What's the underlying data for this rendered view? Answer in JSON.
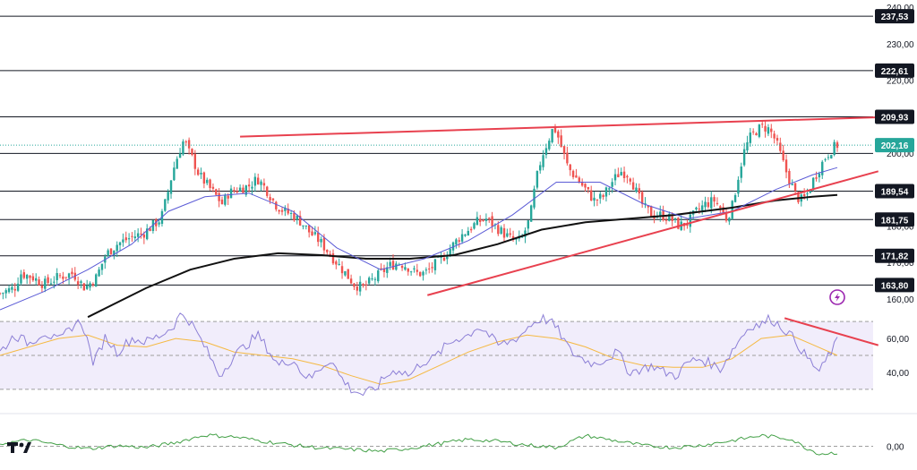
{
  "chart_data": {
    "type": "candlestick",
    "price_panel": {
      "y_ticks": [
        "240,00",
        "230,00",
        "220,00",
        "210,00",
        "200,00",
        "190,00",
        "180,00",
        "170,00",
        "160,00"
      ],
      "y_tick_values": [
        240,
        230,
        220,
        210,
        200,
        190,
        180,
        170,
        160
      ],
      "ylim": [
        157.5,
        241
      ],
      "horizontal_levels": [
        {
          "value": 237.53,
          "label": "237,53"
        },
        {
          "value": 222.61,
          "label": "222,61"
        },
        {
          "value": 209.93,
          "label": "209,93"
        },
        {
          "value": 199.9,
          "label": ""
        },
        {
          "value": 189.54,
          "label": "189,54"
        },
        {
          "value": 181.75,
          "label": "181,75"
        },
        {
          "value": 171.82,
          "label": "171,82"
        },
        {
          "value": 163.8,
          "label": "163,80"
        }
      ],
      "current_price": {
        "value": 202.16,
        "label": "202,16"
      },
      "bar_count": 280,
      "candles_approx_close_path": [
        [
          0,
          161.5
        ],
        [
          10,
          163
        ],
        [
          14,
          167
        ],
        [
          22,
          166
        ],
        [
          30,
          164
        ],
        [
          40,
          166
        ],
        [
          50,
          167
        ],
        [
          58,
          163
        ],
        [
          66,
          166
        ],
        [
          72,
          172
        ],
        [
          80,
          175
        ],
        [
          90,
          177
        ],
        [
          98,
          178
        ],
        [
          104,
          180
        ],
        [
          110,
          182
        ],
        [
          114,
          188
        ],
        [
          118,
          195
        ],
        [
          122,
          200
        ],
        [
          126,
          204
        ],
        [
          128,
          201
        ],
        [
          132,
          198
        ],
        [
          136,
          194
        ],
        [
          142,
          191
        ],
        [
          148,
          188
        ],
        [
          152,
          186
        ],
        [
          156,
          189
        ],
        [
          162,
          190
        ],
        [
          170,
          191
        ],
        [
          176,
          193
        ],
        [
          182,
          190
        ],
        [
          188,
          186
        ],
        [
          194,
          184
        ],
        [
          200,
          183
        ],
        [
          206,
          181
        ],
        [
          212,
          178
        ],
        [
          218,
          176
        ],
        [
          224,
          173
        ],
        [
          230,
          170
        ],
        [
          236,
          167
        ],
        [
          242,
          164
        ],
        [
          248,
          163
        ],
        [
          254,
          165
        ],
        [
          260,
          167
        ],
        [
          266,
          169
        ],
        [
          272,
          170
        ],
        [
          278,
          169
        ],
        [
          284,
          167
        ],
        [
          290,
          167
        ],
        [
          296,
          169
        ],
        [
          302,
          171
        ],
        [
          308,
          174
        ],
        [
          314,
          177
        ],
        [
          320,
          179
        ],
        [
          326,
          181
        ],
        [
          332,
          182
        ],
        [
          338,
          180
        ],
        [
          344,
          178
        ],
        [
          350,
          176
        ],
        [
          356,
          176
        ],
        [
          362,
          182
        ],
        [
          366,
          192
        ],
        [
          370,
          199
        ],
        [
          374,
          203
        ],
        [
          378,
          207
        ],
        [
          380,
          206
        ],
        [
          384,
          201
        ],
        [
          388,
          196
        ],
        [
          394,
          193
        ],
        [
          400,
          190
        ],
        [
          406,
          187
        ],
        [
          412,
          188
        ],
        [
          418,
          192
        ],
        [
          424,
          195
        ],
        [
          430,
          194
        ],
        [
          436,
          188
        ],
        [
          440,
          185
        ],
        [
          446,
          183
        ],
        [
          452,
          183
        ],
        [
          458,
          182
        ],
        [
          464,
          180
        ],
        [
          470,
          181
        ],
        [
          476,
          184
        ],
        [
          482,
          186
        ],
        [
          488,
          187
        ],
        [
          492,
          185
        ],
        [
          496,
          182
        ],
        [
          500,
          185
        ],
        [
          504,
          193
        ],
        [
          508,
          200
        ],
        [
          512,
          204
        ],
        [
          516,
          206
        ],
        [
          520,
          207
        ],
        [
          524,
          207
        ],
        [
          528,
          205
        ],
        [
          532,
          201
        ],
        [
          536,
          196
        ],
        [
          540,
          192
        ],
        [
          544,
          188
        ],
        [
          548,
          187
        ],
        [
          552,
          189
        ],
        [
          556,
          193
        ],
        [
          560,
          196
        ],
        [
          564,
          199
        ],
        [
          568,
          201
        ],
        [
          572,
          202.2
        ]
      ],
      "ma_fast_path": [
        [
          0,
          157
        ],
        [
          30,
          162
        ],
        [
          60,
          168
        ],
        [
          90,
          175
        ],
        [
          115,
          184
        ],
        [
          140,
          188
        ],
        [
          170,
          189
        ],
        [
          200,
          184
        ],
        [
          230,
          174
        ],
        [
          260,
          168
        ],
        [
          290,
          171
        ],
        [
          320,
          176
        ],
        [
          350,
          183
        ],
        [
          380,
          192
        ],
        [
          410,
          192
        ],
        [
          440,
          186
        ],
        [
          470,
          182
        ],
        [
          500,
          184
        ],
        [
          530,
          190
        ],
        [
          555,
          194
        ],
        [
          572,
          196
        ]
      ],
      "ma_slow_path": [
        [
          60,
          155
        ],
        [
          100,
          163
        ],
        [
          130,
          168
        ],
        [
          160,
          171
        ],
        [
          190,
          172.5
        ],
        [
          220,
          172
        ],
        [
          250,
          171
        ],
        [
          280,
          171
        ],
        [
          310,
          172
        ],
        [
          340,
          175
        ],
        [
          370,
          179
        ],
        [
          400,
          181
        ],
        [
          430,
          182
        ],
        [
          460,
          183
        ],
        [
          500,
          185
        ],
        [
          530,
          187
        ],
        [
          555,
          188
        ],
        [
          572,
          188.5
        ]
      ],
      "trendlines": [
        {
          "color": "#e8414f",
          "from": [
            164,
            204.5
          ],
          "to": [
            600,
            209.8
          ]
        },
        {
          "color": "#e8414f",
          "from": [
            292,
            161
          ],
          "to": [
            600,
            195
          ]
        }
      ],
      "icon": "lightning-icon"
    },
    "rsi_panel": {
      "y_ticks": [
        "60,00",
        "40,00"
      ],
      "y_tick_values": [
        60,
        40
      ],
      "ylim": [
        22,
        78
      ],
      "band": [
        30,
        70
      ],
      "midline": 50,
      "rsi_path": [
        [
          0,
          52
        ],
        [
          10,
          62
        ],
        [
          20,
          57
        ],
        [
          30,
          64
        ],
        [
          40,
          58
        ],
        [
          50,
          68
        ],
        [
          56,
          70
        ],
        [
          64,
          45
        ],
        [
          72,
          61
        ],
        [
          80,
          52
        ],
        [
          90,
          60
        ],
        [
          100,
          58
        ],
        [
          110,
          62
        ],
        [
          118,
          67
        ],
        [
          124,
          75
        ],
        [
          130,
          70
        ],
        [
          140,
          55
        ],
        [
          150,
          38
        ],
        [
          160,
          50
        ],
        [
          168,
          56
        ],
        [
          176,
          62
        ],
        [
          182,
          55
        ],
        [
          190,
          44
        ],
        [
          200,
          48
        ],
        [
          206,
          40
        ],
        [
          212,
          36
        ],
        [
          218,
          42
        ],
        [
          226,
          48
        ],
        [
          232,
          38
        ],
        [
          240,
          30
        ],
        [
          248,
          27
        ],
        [
          256,
          30
        ],
        [
          264,
          38
        ],
        [
          272,
          42
        ],
        [
          280,
          38
        ],
        [
          288,
          46
        ],
        [
          296,
          48
        ],
        [
          304,
          55
        ],
        [
          312,
          60
        ],
        [
          320,
          62
        ],
        [
          326,
          67
        ],
        [
          332,
          64
        ],
        [
          340,
          56
        ],
        [
          348,
          58
        ],
        [
          356,
          62
        ],
        [
          362,
          68
        ],
        [
          370,
          72
        ],
        [
          376,
          70
        ],
        [
          382,
          64
        ],
        [
          390,
          52
        ],
        [
          398,
          48
        ],
        [
          406,
          45
        ],
        [
          414,
          48
        ],
        [
          422,
          52
        ],
        [
          430,
          40
        ],
        [
          438,
          42
        ],
        [
          446,
          44
        ],
        [
          454,
          40
        ],
        [
          462,
          38
        ],
        [
          470,
          46
        ],
        [
          478,
          48
        ],
        [
          486,
          45
        ],
        [
          492,
          42
        ],
        [
          498,
          50
        ],
        [
          504,
          58
        ],
        [
          510,
          65
        ],
        [
          514,
          68
        ],
        [
          520,
          68
        ],
        [
          526,
          72
        ],
        [
          532,
          68
        ],
        [
          538,
          64
        ],
        [
          544,
          58
        ],
        [
          550,
          50
        ],
        [
          556,
          44
        ],
        [
          560,
          40
        ],
        [
          566,
          50
        ],
        [
          572,
          58
        ]
      ],
      "rsi_ma_path": [
        [
          0,
          50
        ],
        [
          20,
          55
        ],
        [
          40,
          60
        ],
        [
          60,
          62
        ],
        [
          80,
          56
        ],
        [
          100,
          55
        ],
        [
          120,
          60
        ],
        [
          140,
          58
        ],
        [
          160,
          52
        ],
        [
          180,
          50
        ],
        [
          200,
          48
        ],
        [
          220,
          44
        ],
        [
          240,
          38
        ],
        [
          260,
          33
        ],
        [
          280,
          36
        ],
        [
          300,
          44
        ],
        [
          320,
          52
        ],
        [
          340,
          58
        ],
        [
          360,
          62
        ],
        [
          380,
          60
        ],
        [
          400,
          55
        ],
        [
          420,
          48
        ],
        [
          440,
          44
        ],
        [
          460,
          43
        ],
        [
          480,
          43
        ],
        [
          500,
          48
        ],
        [
          520,
          60
        ],
        [
          540,
          62
        ],
        [
          556,
          56
        ],
        [
          572,
          50
        ]
      ],
      "trendline": {
        "color": "#e8414f",
        "from": [
          536,
          72
        ],
        "to": [
          600,
          56
        ]
      }
    },
    "bottom_panel": {
      "y_ticks": [
        "0,00"
      ],
      "y_tick_values": [
        0
      ],
      "ylim": [
        -2.2,
        3.2
      ],
      "zero_line": 0,
      "path": [
        [
          0,
          0.4
        ],
        [
          20,
          1.0
        ],
        [
          40,
          0.2
        ],
        [
          60,
          -0.4
        ],
        [
          80,
          0.1
        ],
        [
          100,
          -0.2
        ],
        [
          120,
          0.6
        ],
        [
          140,
          1.8
        ],
        [
          160,
          1.5
        ],
        [
          180,
          0.8
        ],
        [
          200,
          0.2
        ],
        [
          220,
          -0.3
        ],
        [
          240,
          -0.5
        ],
        [
          260,
          -0.8
        ],
        [
          280,
          -0.3
        ],
        [
          300,
          0.4
        ],
        [
          320,
          1.1
        ],
        [
          340,
          0.8
        ],
        [
          360,
          0.2
        ],
        [
          380,
          -0.2
        ],
        [
          400,
          1.7
        ],
        [
          420,
          0.9
        ],
        [
          440,
          0.1
        ],
        [
          460,
          -0.2
        ],
        [
          480,
          0.2
        ],
        [
          500,
          0.9
        ],
        [
          520,
          1.7
        ],
        [
          540,
          1.2
        ],
        [
          550,
          -0.2
        ],
        [
          560,
          -1.2
        ],
        [
          572,
          -1.0
        ]
      ]
    }
  },
  "branding": {
    "logo": "tradingview-logo"
  },
  "colors": {
    "up": "#26a69a",
    "down": "#ef5350",
    "ma_fast": "#5b5bd6",
    "ma_slow": "#111111",
    "trend": "#e8414f",
    "rsi": "#8c7fd6",
    "rsi_ma": "#f5b942",
    "rsi_band": "#f1edfb",
    "bottom": "#43a047",
    "current_tag": "#26a69a"
  }
}
